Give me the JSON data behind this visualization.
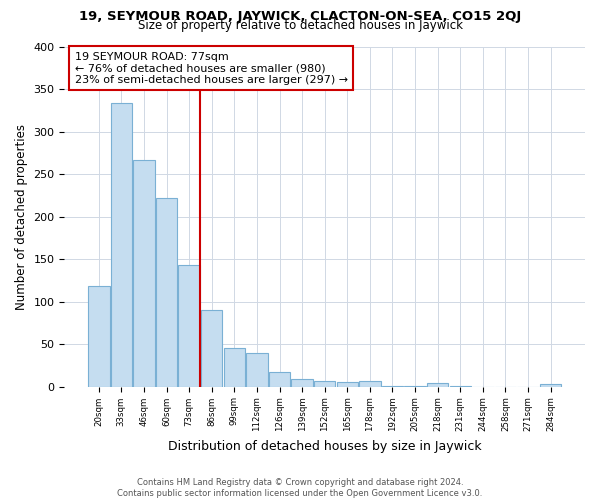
{
  "title": "19, SEYMOUR ROAD, JAYWICK, CLACTON-ON-SEA, CO15 2QJ",
  "subtitle": "Size of property relative to detached houses in Jaywick",
  "xlabel": "Distribution of detached houses by size in Jaywick",
  "ylabel": "Number of detached properties",
  "bar_labels": [
    "20sqm",
    "33sqm",
    "46sqm",
    "60sqm",
    "73sqm",
    "86sqm",
    "99sqm",
    "112sqm",
    "126sqm",
    "139sqm",
    "152sqm",
    "165sqm",
    "178sqm",
    "192sqm",
    "205sqm",
    "218sqm",
    "231sqm",
    "244sqm",
    "258sqm",
    "271sqm",
    "284sqm"
  ],
  "bar_values": [
    118,
    333,
    267,
    222,
    143,
    90,
    45,
    40,
    17,
    9,
    6,
    5,
    6,
    1,
    1,
    4,
    1,
    0,
    0,
    0,
    3
  ],
  "bar_color": "#c5ddf0",
  "bar_edge_color": "#7ab0d4",
  "vline_x": 4.5,
  "vline_color": "#cc0000",
  "annotation_line1": "19 SEYMOUR ROAD: 77sqm",
  "annotation_line2": "← 76% of detached houses are smaller (980)",
  "annotation_line3": "23% of semi-detached houses are larger (297) →",
  "annotation_box_color": "#ffffff",
  "annotation_box_edge_color": "#cc0000",
  "ylim": [
    0,
    400
  ],
  "yticks": [
    0,
    50,
    100,
    150,
    200,
    250,
    300,
    350,
    400
  ],
  "footnote": "Contains HM Land Registry data © Crown copyright and database right 2024.\nContains public sector information licensed under the Open Government Licence v3.0.",
  "bg_color": "#ffffff",
  "grid_color": "#d0d8e4"
}
